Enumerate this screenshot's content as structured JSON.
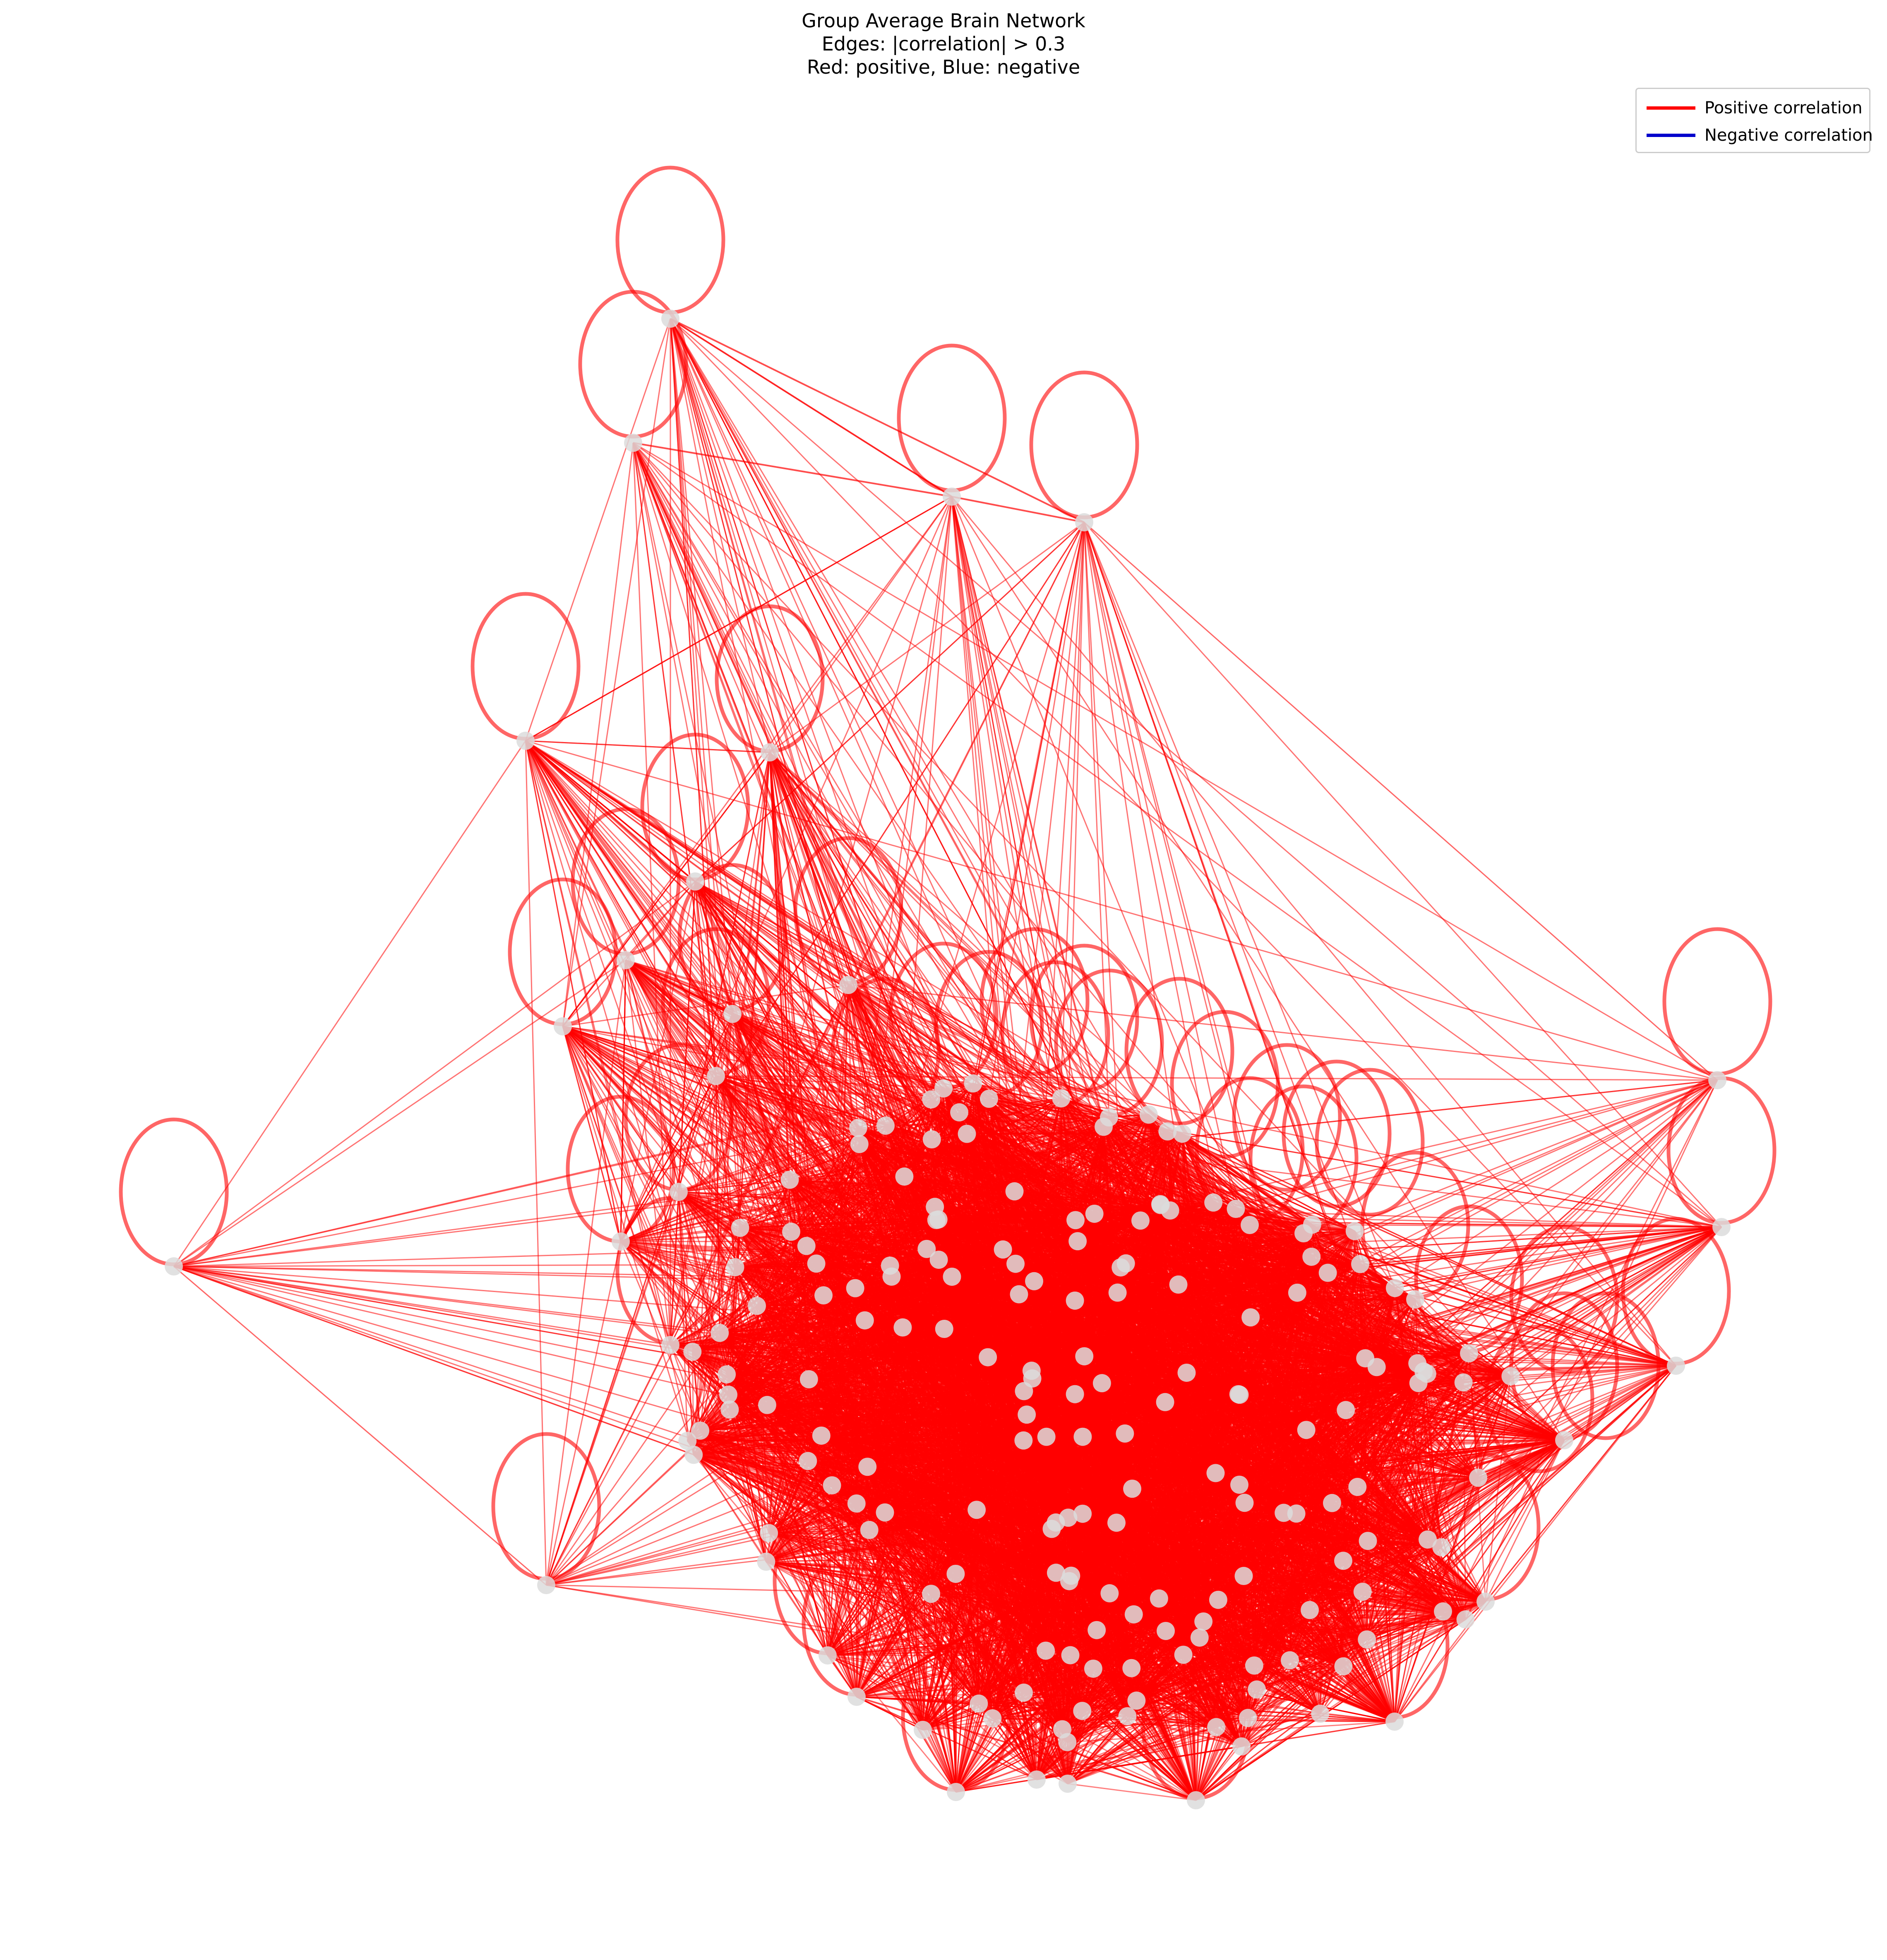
{
  "title": {
    "line1": "Group Average Brain Network",
    "line2": "Edges: |correlation| > 0.3",
    "line3": "Red: positive, Blue: negative"
  },
  "legend": {
    "placement": "top-right",
    "positive": {
      "label": "Positive correlation",
      "color": "#ff0000"
    },
    "negative": {
      "label": "Negative correlation",
      "color": "#0000cc"
    }
  },
  "colors": {
    "edge_positive": "#ff0000",
    "node": "#dcdcdc"
  },
  "graph": {
    "threshold": 0.3,
    "node_count": 200,
    "self_loops": true
  }
}
